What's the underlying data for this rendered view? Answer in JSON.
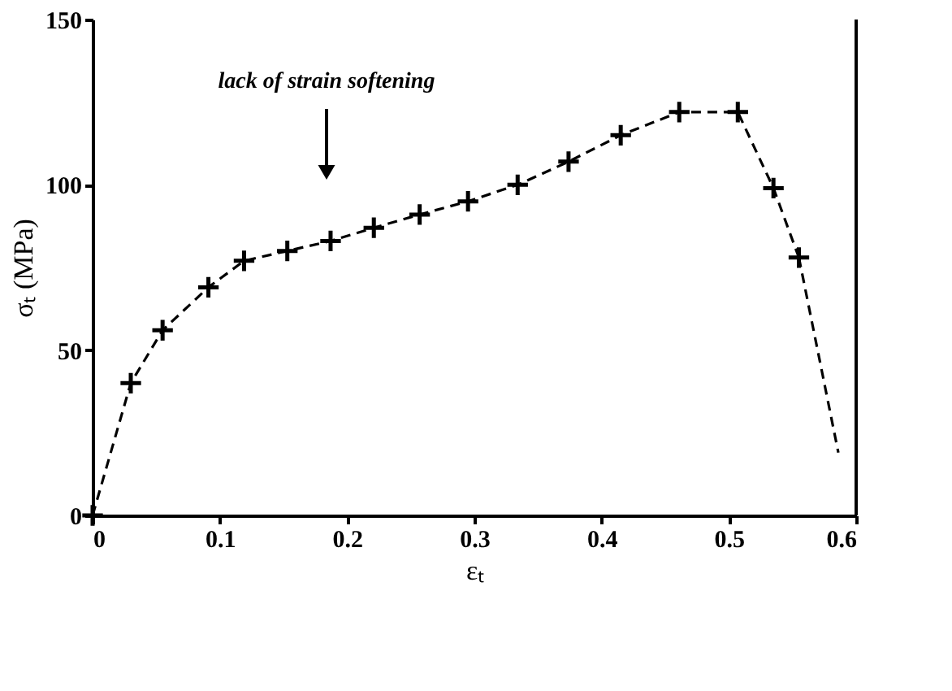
{
  "chart_data": {
    "type": "line",
    "xlabel": "εₜ",
    "ylabel": "σₜ (MPa)",
    "xlim": [
      0,
      0.6
    ],
    "xticks": [
      0,
      0.1,
      0.2,
      0.3,
      0.4,
      0.5,
      0.6
    ],
    "ylim": [
      0,
      150
    ],
    "yticks": [
      0,
      50,
      100,
      150
    ],
    "grid": false,
    "annotations": [
      "lack of strain softening"
    ],
    "series": [
      {
        "color": "#000000",
        "marker": "cross",
        "line_style": "dashed",
        "x": [
          0,
          0.03,
          0.055,
          0.091,
          0.119,
          0.153,
          0.187,
          0.221,
          0.257,
          0.295,
          0.334,
          0.374,
          0.415,
          0.461,
          0.507,
          0.535,
          0.555
        ],
        "values": [
          0,
          40,
          56,
          69,
          77,
          80,
          83,
          87,
          91,
          95,
          100,
          107,
          115,
          122,
          122,
          99,
          78
        ]
      },
      {
        "color": "#000000",
        "marker": "none",
        "line_style": "dashed",
        "x": [
          0.555,
          0.586
        ],
        "values": [
          78,
          19
        ]
      }
    ]
  }
}
